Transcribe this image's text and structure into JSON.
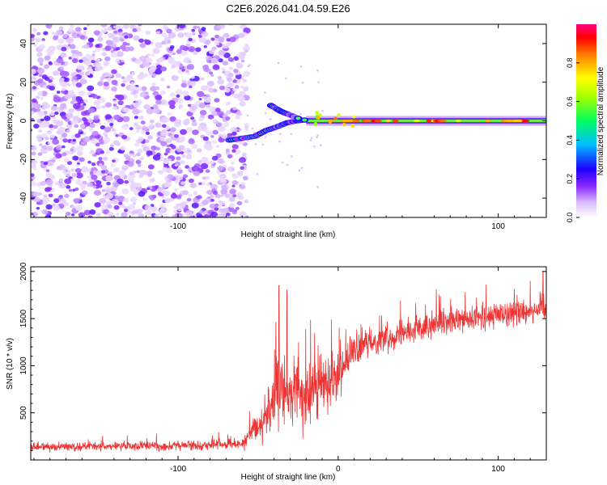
{
  "title": "C2E6.2026.041.04.59.E26",
  "chart_data": [
    {
      "type": "heatmap",
      "title": "C2E6.2026.041.04.59.E26",
      "xlabel": "Height of straight line (km)",
      "ylabel": "Frequency (Hz)",
      "xlim": [
        -192,
        130
      ],
      "ylim": [
        -50,
        50
      ],
      "xticks": [
        -100,
        0,
        100
      ],
      "xtick_labels": [
        "-100",
        "",
        "100"
      ],
      "yticks": [
        -40,
        -20,
        0,
        20,
        40
      ],
      "ytick_labels": [
        "-40",
        "-20",
        "0",
        "20",
        "40"
      ],
      "colorbar": {
        "label": "Normalized spectral amplitude",
        "range": [
          0,
          1
        ],
        "ticks": [
          0.0,
          0.2,
          0.4,
          0.6,
          0.8
        ],
        "tick_labels": [
          "0.0",
          "0.2",
          "0.4",
          "0.6",
          "0.8"
        ],
        "stops": [
          "#ffffff",
          "#6a00ff",
          "#0000ff",
          "#00ffff",
          "#00ff00",
          "#ffff00",
          "#ff8000",
          "#ff0000",
          "#ff0080"
        ]
      },
      "features": {
        "noise_region_x": [
          -192,
          -57
        ],
        "noise_region_y": [
          -50,
          50
        ],
        "scattered_noise_amplitude": [
          0.05,
          0.2
        ],
        "converging_chirp": [
          {
            "x": -68,
            "y": -10
          },
          {
            "x": -60,
            "y": -9
          },
          {
            "x": -52,
            "y": -8
          },
          {
            "x": -45,
            "y": -5
          },
          {
            "x": -38,
            "y": -3
          },
          {
            "x": -32,
            "y": -1
          },
          {
            "x": -26,
            "y": 0
          },
          {
            "x": -20,
            "y": 0.5
          }
        ],
        "upper_branch": [
          {
            "x": -42,
            "y": 8
          },
          {
            "x": -36,
            "y": 5
          },
          {
            "x": -30,
            "y": 3
          },
          {
            "x": -24,
            "y": 1
          }
        ],
        "tone_frequency": 0,
        "tone_x_range": [
          -20,
          130
        ],
        "tone_peak_amplitude": 0.95
      }
    },
    {
      "type": "line",
      "xlabel": "Height of straight line (km)",
      "ylabel": "SNR (10 * v/v)",
      "xlim": [
        -192,
        130
      ],
      "ylim": [
        0,
        2050
      ],
      "xticks": [
        -100,
        0,
        100
      ],
      "xtick_labels": [
        "-100",
        "0",
        "100"
      ],
      "yticks": [
        500,
        1000,
        1500,
        2000
      ],
      "ytick_labels": [
        "500",
        "1000",
        "1500",
        "2000"
      ],
      "series": [
        {
          "name": "SNR",
          "color": "#ee3333",
          "envelope": [
            {
              "x": -192,
              "mean": 140,
              "spread": 80
            },
            {
              "x": -100,
              "mean": 150,
              "spread": 90
            },
            {
              "x": -60,
              "mean": 170,
              "spread": 100
            },
            {
              "x": -48,
              "mean": 400,
              "spread": 350
            },
            {
              "x": -38,
              "mean": 700,
              "spread": 650
            },
            {
              "x": -30,
              "mean": 750,
              "spread": 600
            },
            {
              "x": -20,
              "mean": 650,
              "spread": 600
            },
            {
              "x": -10,
              "mean": 800,
              "spread": 500
            },
            {
              "x": 0,
              "mean": 950,
              "spread": 500
            },
            {
              "x": 10,
              "mean": 1150,
              "spread": 350
            },
            {
              "x": 20,
              "mean": 1250,
              "spread": 250
            },
            {
              "x": 40,
              "mean": 1350,
              "spread": 250
            },
            {
              "x": 60,
              "mean": 1420,
              "spread": 250
            },
            {
              "x": 80,
              "mean": 1480,
              "spread": 250
            },
            {
              "x": 100,
              "mean": 1540,
              "spread": 250
            },
            {
              "x": 130,
              "mean": 1620,
              "spread": 280
            }
          ],
          "notable_spikes": [
            {
              "x": -37,
              "value": 1850
            },
            {
              "x": -32,
              "value": 1800
            },
            {
              "x": 128,
              "value": 2000
            }
          ]
        }
      ]
    }
  ]
}
